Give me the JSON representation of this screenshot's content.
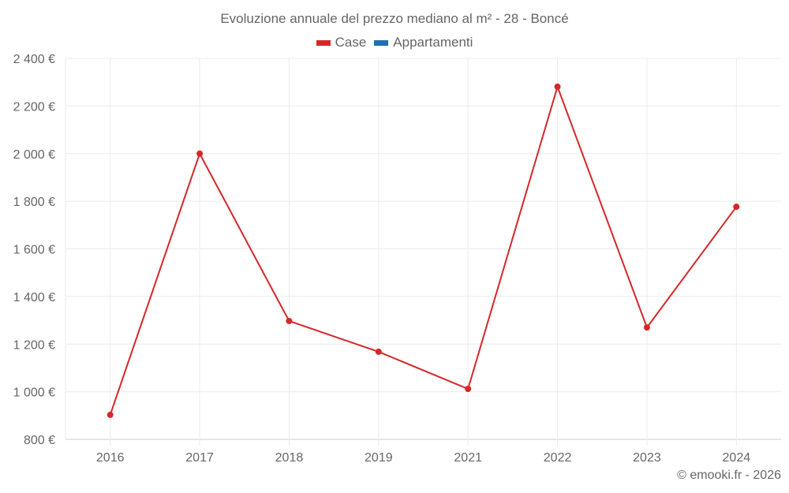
{
  "chart_data": {
    "type": "line",
    "title": "Evoluzione annuale del prezzo mediano al m² - 28 - Boncé",
    "categories": [
      "2016",
      "2017",
      "2018",
      "2019",
      "2021",
      "2022",
      "2023",
      "2024"
    ],
    "series": [
      {
        "name": "Case",
        "color": "#d62728",
        "values": [
          903,
          2000,
          1297,
          1168,
          1012,
          2281,
          1270,
          1777
        ]
      },
      {
        "name": "Appartamenti",
        "color": "#1f6fb2",
        "values": []
      }
    ],
    "xlabel": "",
    "ylabel": "",
    "ylim": [
      800,
      2400
    ],
    "yticks": [
      "800 €",
      "1 000 €",
      "1 200 €",
      "1 400 €",
      "1 600 €",
      "1 800 €",
      "2 000 €",
      "2 200 €",
      "2 400 €"
    ],
    "grid": true,
    "legend_position": "top"
  },
  "legend": {
    "case_label": "Case",
    "appartamenti_label": "Appartamenti"
  },
  "credit": "© emooki.fr - 2026"
}
